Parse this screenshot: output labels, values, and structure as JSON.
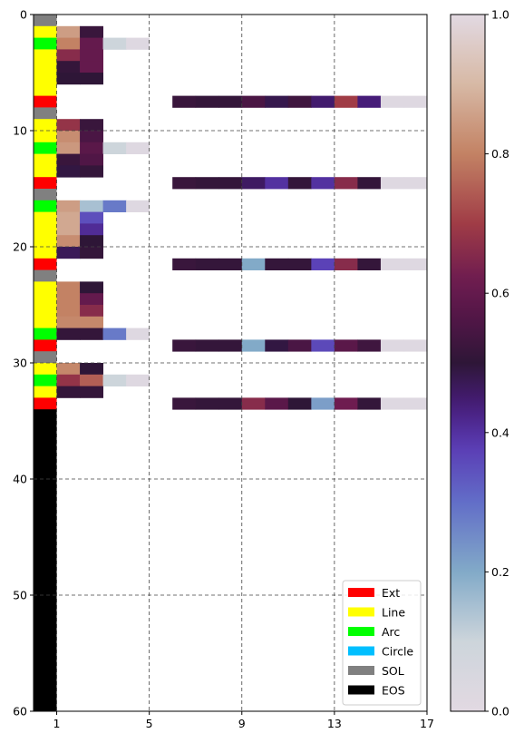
{
  "chart_data": {
    "type": "heatmap",
    "title": "",
    "xlabel": "",
    "ylabel": "",
    "xlim": [
      0,
      17
    ],
    "ylim": [
      60,
      0
    ],
    "x_ticks": [
      1,
      5,
      9,
      13,
      17
    ],
    "y_ticks": [
      0,
      10,
      20,
      30,
      40,
      50,
      60
    ],
    "grid": true,
    "grid_style": "dashed",
    "rows": 60,
    "columns": 17,
    "colormap": "twilight",
    "colorbar": {
      "min": 0.0,
      "max": 1.0,
      "ticks": [
        "0.0",
        "0.2",
        "0.4",
        "0.6",
        "0.8",
        "1.0"
      ]
    },
    "legend": {
      "placement": "lower-right",
      "entries": [
        {
          "label": "Ext",
          "color": "#ff0000"
        },
        {
          "label": "Line",
          "color": "#ffff00"
        },
        {
          "label": "Arc",
          "color": "#00ff00"
        },
        {
          "label": "Circle",
          "color": "#00bfff"
        },
        {
          "label": "SOL",
          "color": "#808080"
        },
        {
          "label": "EOS",
          "color": "#000000"
        }
      ]
    },
    "command_types": [
      "SOL",
      "Line",
      "Arc",
      "Line",
      "Line",
      "Line",
      "Line",
      "Ext",
      "SOL",
      "Line",
      "Line",
      "Arc",
      "Line",
      "Line",
      "Ext",
      "SOL",
      "Arc",
      "Line",
      "Line",
      "Line",
      "Line",
      "Ext",
      "SOL",
      "Line",
      "Line",
      "Line",
      "Line",
      "Arc",
      "Ext",
      "SOL",
      "Line",
      "Arc",
      "Line",
      "Ext",
      "EOS",
      "EOS",
      "EOS",
      "EOS",
      "EOS",
      "EOS",
      "EOS",
      "EOS",
      "EOS",
      "EOS",
      "EOS",
      "EOS",
      "EOS",
      "EOS",
      "EOS",
      "EOS",
      "EOS",
      "EOS",
      "EOS",
      "EOS",
      "EOS",
      "EOS",
      "EOS",
      "EOS",
      "EOS",
      "EOS"
    ],
    "cells": [
      {
        "row": 1,
        "values": [
          0.85,
          0.52
        ]
      },
      {
        "row": 2,
        "values": [
          0.8,
          0.6,
          0.1,
          0.02
        ]
      },
      {
        "row": 3,
        "values": [
          0.66,
          0.6
        ]
      },
      {
        "row": 4,
        "values": [
          0.51,
          0.6
        ]
      },
      {
        "row": 5,
        "values": [
          0.5,
          0.5
        ]
      },
      {
        "row": 7,
        "values": [
          null,
          null,
          null,
          null,
          null,
          0.52,
          0.51,
          0.51,
          0.55,
          0.48,
          0.53,
          0.45,
          0.7,
          0.44,
          0.02,
          0.02
        ]
      },
      {
        "row": 9,
        "values": [
          0.68,
          0.52
        ]
      },
      {
        "row": 10,
        "values": [
          0.82,
          0.55
        ]
      },
      {
        "row": 11,
        "values": [
          0.84,
          0.58,
          0.1,
          0.02
        ]
      },
      {
        "row": 12,
        "values": [
          0.52,
          0.56
        ]
      },
      {
        "row": 13,
        "values": [
          0.49,
          0.51
        ]
      },
      {
        "row": 14,
        "values": [
          null,
          null,
          null,
          null,
          null,
          0.52,
          0.51,
          0.51,
          0.46,
          0.4,
          0.51,
          0.4,
          0.66,
          0.51,
          0.02,
          0.02
        ]
      },
      {
        "row": 16,
        "values": [
          0.85,
          0.15,
          0.28,
          0.02
        ]
      },
      {
        "row": 17,
        "values": [
          0.87,
          0.35
        ]
      },
      {
        "row": 18,
        "values": [
          0.87,
          0.41
        ]
      },
      {
        "row": 19,
        "values": [
          0.82,
          0.5
        ]
      },
      {
        "row": 20,
        "values": [
          0.47,
          0.51
        ]
      },
      {
        "row": 21,
        "values": [
          null,
          null,
          null,
          null,
          null,
          0.52,
          0.51,
          0.51,
          0.2,
          0.51,
          0.51,
          0.37,
          0.66,
          0.51,
          0.02,
          0.02
        ]
      },
      {
        "row": 23,
        "values": [
          0.8,
          0.5
        ]
      },
      {
        "row": 24,
        "values": [
          0.8,
          0.6
        ]
      },
      {
        "row": 25,
        "values": [
          0.8,
          0.66
        ]
      },
      {
        "row": 26,
        "values": [
          0.81,
          0.81
        ]
      },
      {
        "row": 27,
        "values": [
          0.51,
          0.51,
          0.28,
          0.02
        ]
      },
      {
        "row": 28,
        "values": [
          null,
          null,
          null,
          null,
          null,
          0.52,
          0.51,
          0.51,
          0.2,
          0.49,
          0.55,
          0.36,
          0.58,
          0.53,
          0.02,
          0.02
        ]
      },
      {
        "row": 30,
        "values": [
          0.81,
          0.5
        ]
      },
      {
        "row": 31,
        "values": [
          0.68,
          0.75,
          0.1,
          0.02
        ]
      },
      {
        "row": 32,
        "values": [
          0.51,
          0.51
        ]
      },
      {
        "row": 33,
        "values": [
          null,
          null,
          null,
          null,
          null,
          0.52,
          0.51,
          0.51,
          0.66,
          0.58,
          0.5,
          0.22,
          0.62,
          0.51,
          0.02,
          0.02
        ]
      }
    ]
  }
}
